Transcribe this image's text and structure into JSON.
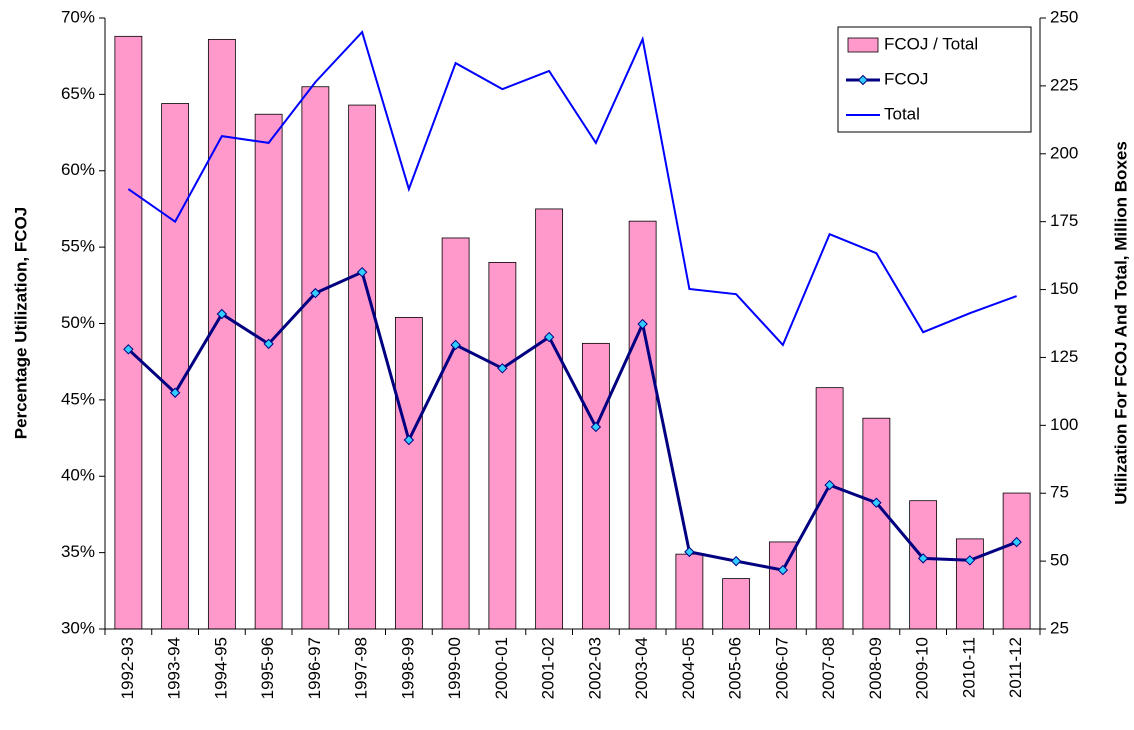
{
  "chart_data": {
    "type": "bar-line",
    "ylabel": "Percentage Utilization, FCOJ",
    "y2label": "Utilization For FCOJ And Total, Million Boxes",
    "categories": [
      "1992-93",
      "1993-94",
      "1994-95",
      "1995-96",
      "1996-97",
      "1997-98",
      "1998-99",
      "1999-00",
      "2000-01",
      "2001-02",
      "2002-03",
      "2003-04",
      "2004-05",
      "2005-06",
      "2006-07",
      "2007-08",
      "2008-09",
      "2009-10",
      "2010-11",
      "2011-12"
    ],
    "series": [
      {
        "name": "FCOJ / Total",
        "type": "bar",
        "axis": "y",
        "color": "#ff99cc",
        "values": [
          68.8,
          64.4,
          68.6,
          63.7,
          65.5,
          64.3,
          50.4,
          55.6,
          54.0,
          57.5,
          48.7,
          56.7,
          34.9,
          33.3,
          35.7,
          45.8,
          43.8,
          38.4,
          35.9,
          38.9
        ]
      },
      {
        "name": "FCOJ",
        "type": "line",
        "axis": "y2",
        "color": "#000080",
        "marker_color": "#33ccff",
        "values": [
          128,
          112,
          141,
          130,
          148.7,
          156.4,
          94.6,
          129.6,
          121,
          132.5,
          99.4,
          137.3,
          53.4,
          50,
          46.7,
          78,
          71.5,
          51,
          50.3,
          57
        ]
      },
      {
        "name": "Total",
        "type": "line",
        "axis": "y2",
        "color": "#0000ff",
        "values": [
          187,
          175,
          206.5,
          204,
          226.4,
          244.8,
          187,
          233.4,
          223.8,
          230.5,
          204,
          242.2,
          150.2,
          148.3,
          129.6,
          170.4,
          163.4,
          134.3,
          141.3,
          147.6
        ]
      }
    ],
    "ylim": [
      30,
      70
    ],
    "yticks": [
      {
        "value": 30,
        "label": "30%"
      },
      {
        "value": 35,
        "label": "35%"
      },
      {
        "value": 40,
        "label": "40%"
      },
      {
        "value": 45,
        "label": "45%"
      },
      {
        "value": 50,
        "label": "50%"
      },
      {
        "value": 55,
        "label": "55%"
      },
      {
        "value": 60,
        "label": "60%"
      },
      {
        "value": 65,
        "label": "65%"
      },
      {
        "value": 70,
        "label": "70%"
      }
    ],
    "y2lim": [
      25,
      250
    ],
    "y2ticks": [
      25,
      50,
      75,
      100,
      125,
      150,
      175,
      200,
      225,
      250
    ],
    "grid": false,
    "legend": "upper right"
  }
}
